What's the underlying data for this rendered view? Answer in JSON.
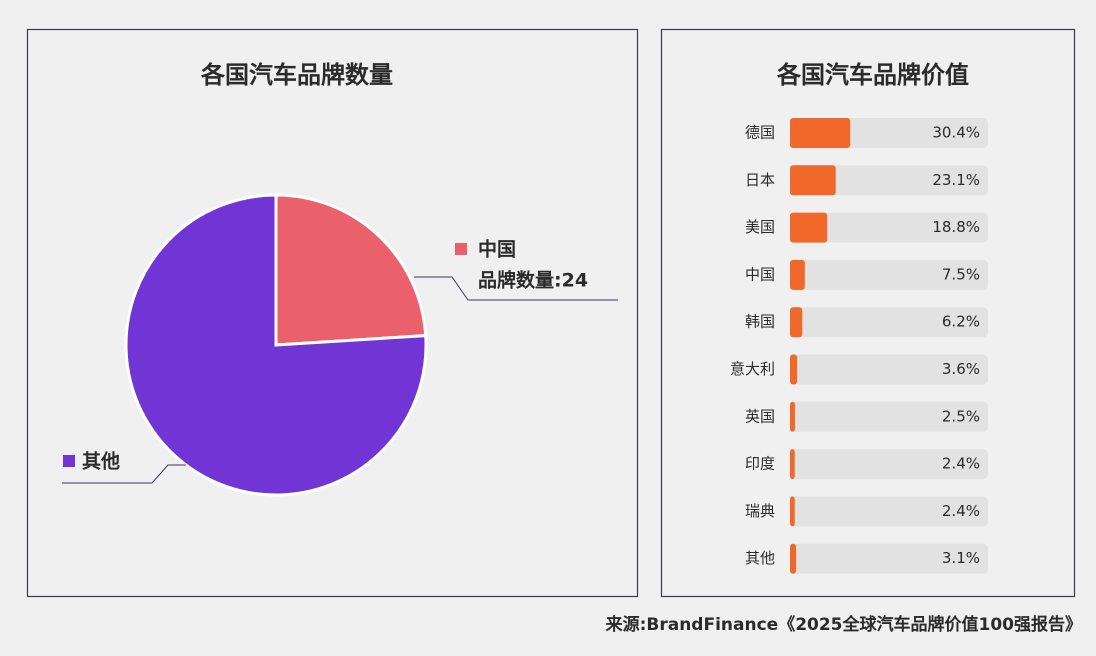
{
  "chart_data": [
    {
      "type": "pie",
      "title": "各国汽车品牌数量",
      "categories": [
        "中国",
        "其他"
      ],
      "values": [
        24,
        76
      ],
      "value_labels": [
        "品牌数量:24",
        null
      ],
      "colors": [
        "#ea616b",
        "#7035d4"
      ]
    },
    {
      "type": "hbar",
      "title": "各国汽车品牌价值",
      "categories": [
        "德国",
        "日本",
        "美国",
        "中国",
        "韩国",
        "意大利",
        "英国",
        "印度",
        "瑞典",
        "其他"
      ],
      "values": [
        30.4,
        23.1,
        18.8,
        7.5,
        6.2,
        3.6,
        2.5,
        2.4,
        2.4,
        3.1
      ],
      "value_labels": [
        "30.4%",
        "23.1%",
        "18.8%",
        "7.5%",
        "6.2%",
        "3.6%",
        "2.5%",
        "2.4%",
        "2.4%",
        "3.1%"
      ],
      "xlim": [
        0,
        100
      ],
      "color": "#f0692a"
    }
  ],
  "source": "来源:BrandFinance《2025全球汽车品牌价值100强报告》"
}
